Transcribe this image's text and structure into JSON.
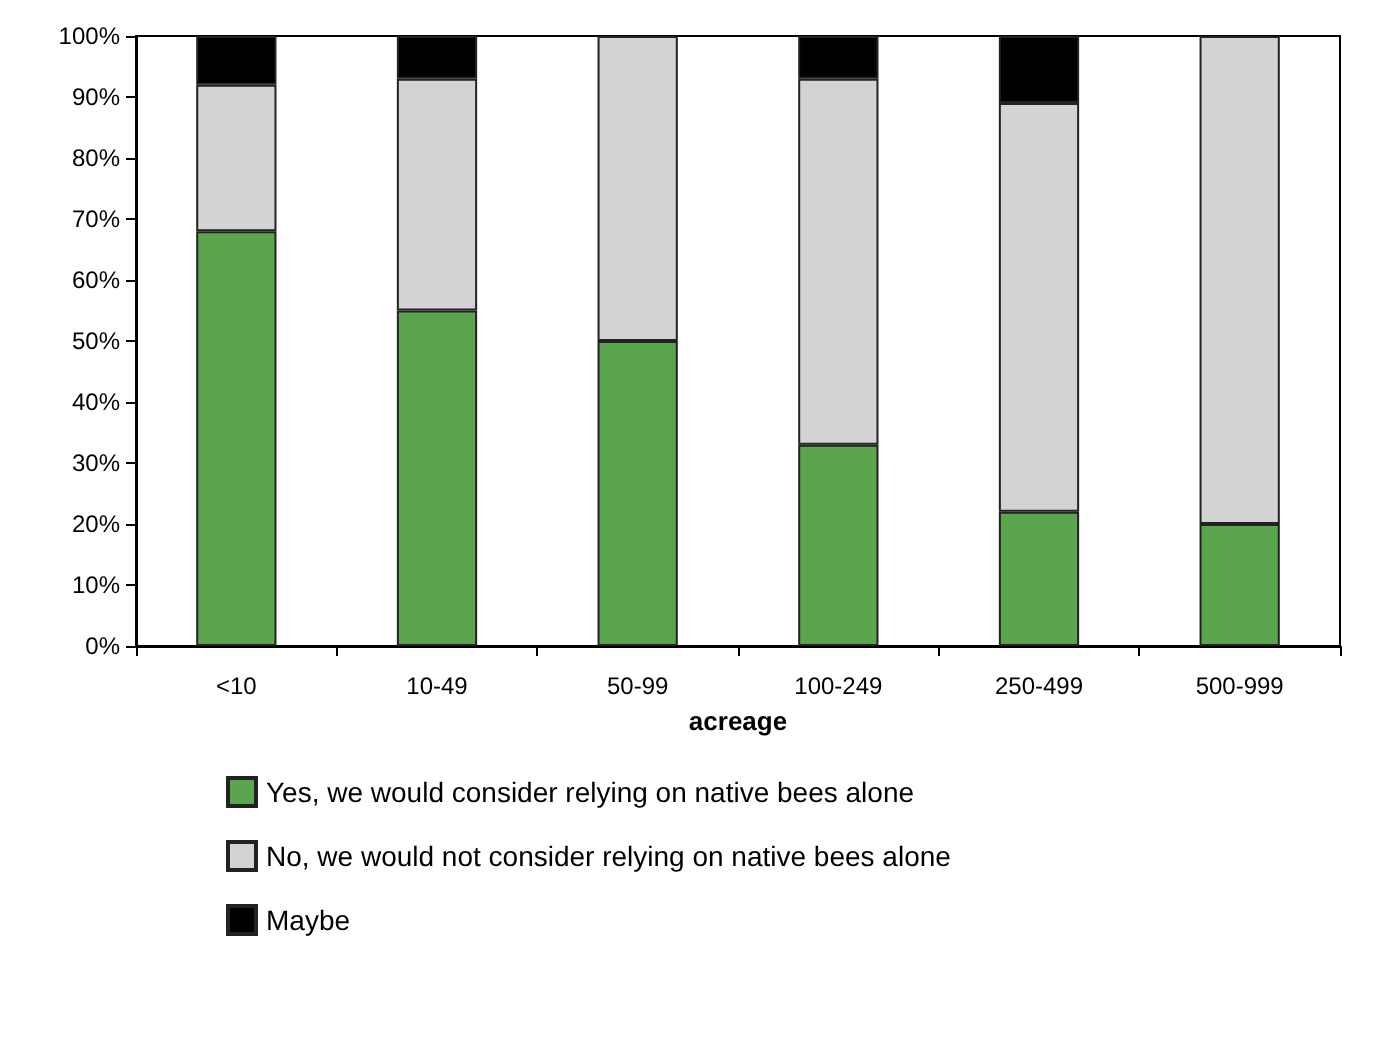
{
  "chart_data": {
    "type": "bar",
    "stacked": true,
    "xlabel": "acreage",
    "categories": [
      "<10",
      "10-49",
      "50-99",
      "100-249",
      "250-499",
      "500-999"
    ],
    "series": [
      {
        "name": "Yes, we would consider relying on native bees alone",
        "color": "#5aa54e",
        "values": [
          68,
          55,
          50,
          33,
          22,
          20
        ]
      },
      {
        "name": "No, we would not consider relying on native bees alone",
        "color": "#d3d3d3",
        "values": [
          24,
          38,
          50,
          60,
          67,
          80
        ]
      },
      {
        "name": "Maybe",
        "color": "#000000",
        "values": [
          8,
          7,
          0,
          7,
          11,
          0
        ]
      }
    ],
    "ylim": [
      0,
      100
    ],
    "yticks": [
      {
        "value": 0,
        "label": "0%"
      },
      {
        "value": 10,
        "label": "10%"
      },
      {
        "value": 20,
        "label": "20%"
      },
      {
        "value": 30,
        "label": "30%"
      },
      {
        "value": 40,
        "label": "40%"
      },
      {
        "value": 50,
        "label": "50%"
      },
      {
        "value": 60,
        "label": "60%"
      },
      {
        "value": 70,
        "label": "70%"
      },
      {
        "value": 80,
        "label": "80%"
      },
      {
        "value": 90,
        "label": "90%"
      },
      {
        "value": 100,
        "label": "100%"
      }
    ],
    "grid": false,
    "legend": "bottom"
  }
}
